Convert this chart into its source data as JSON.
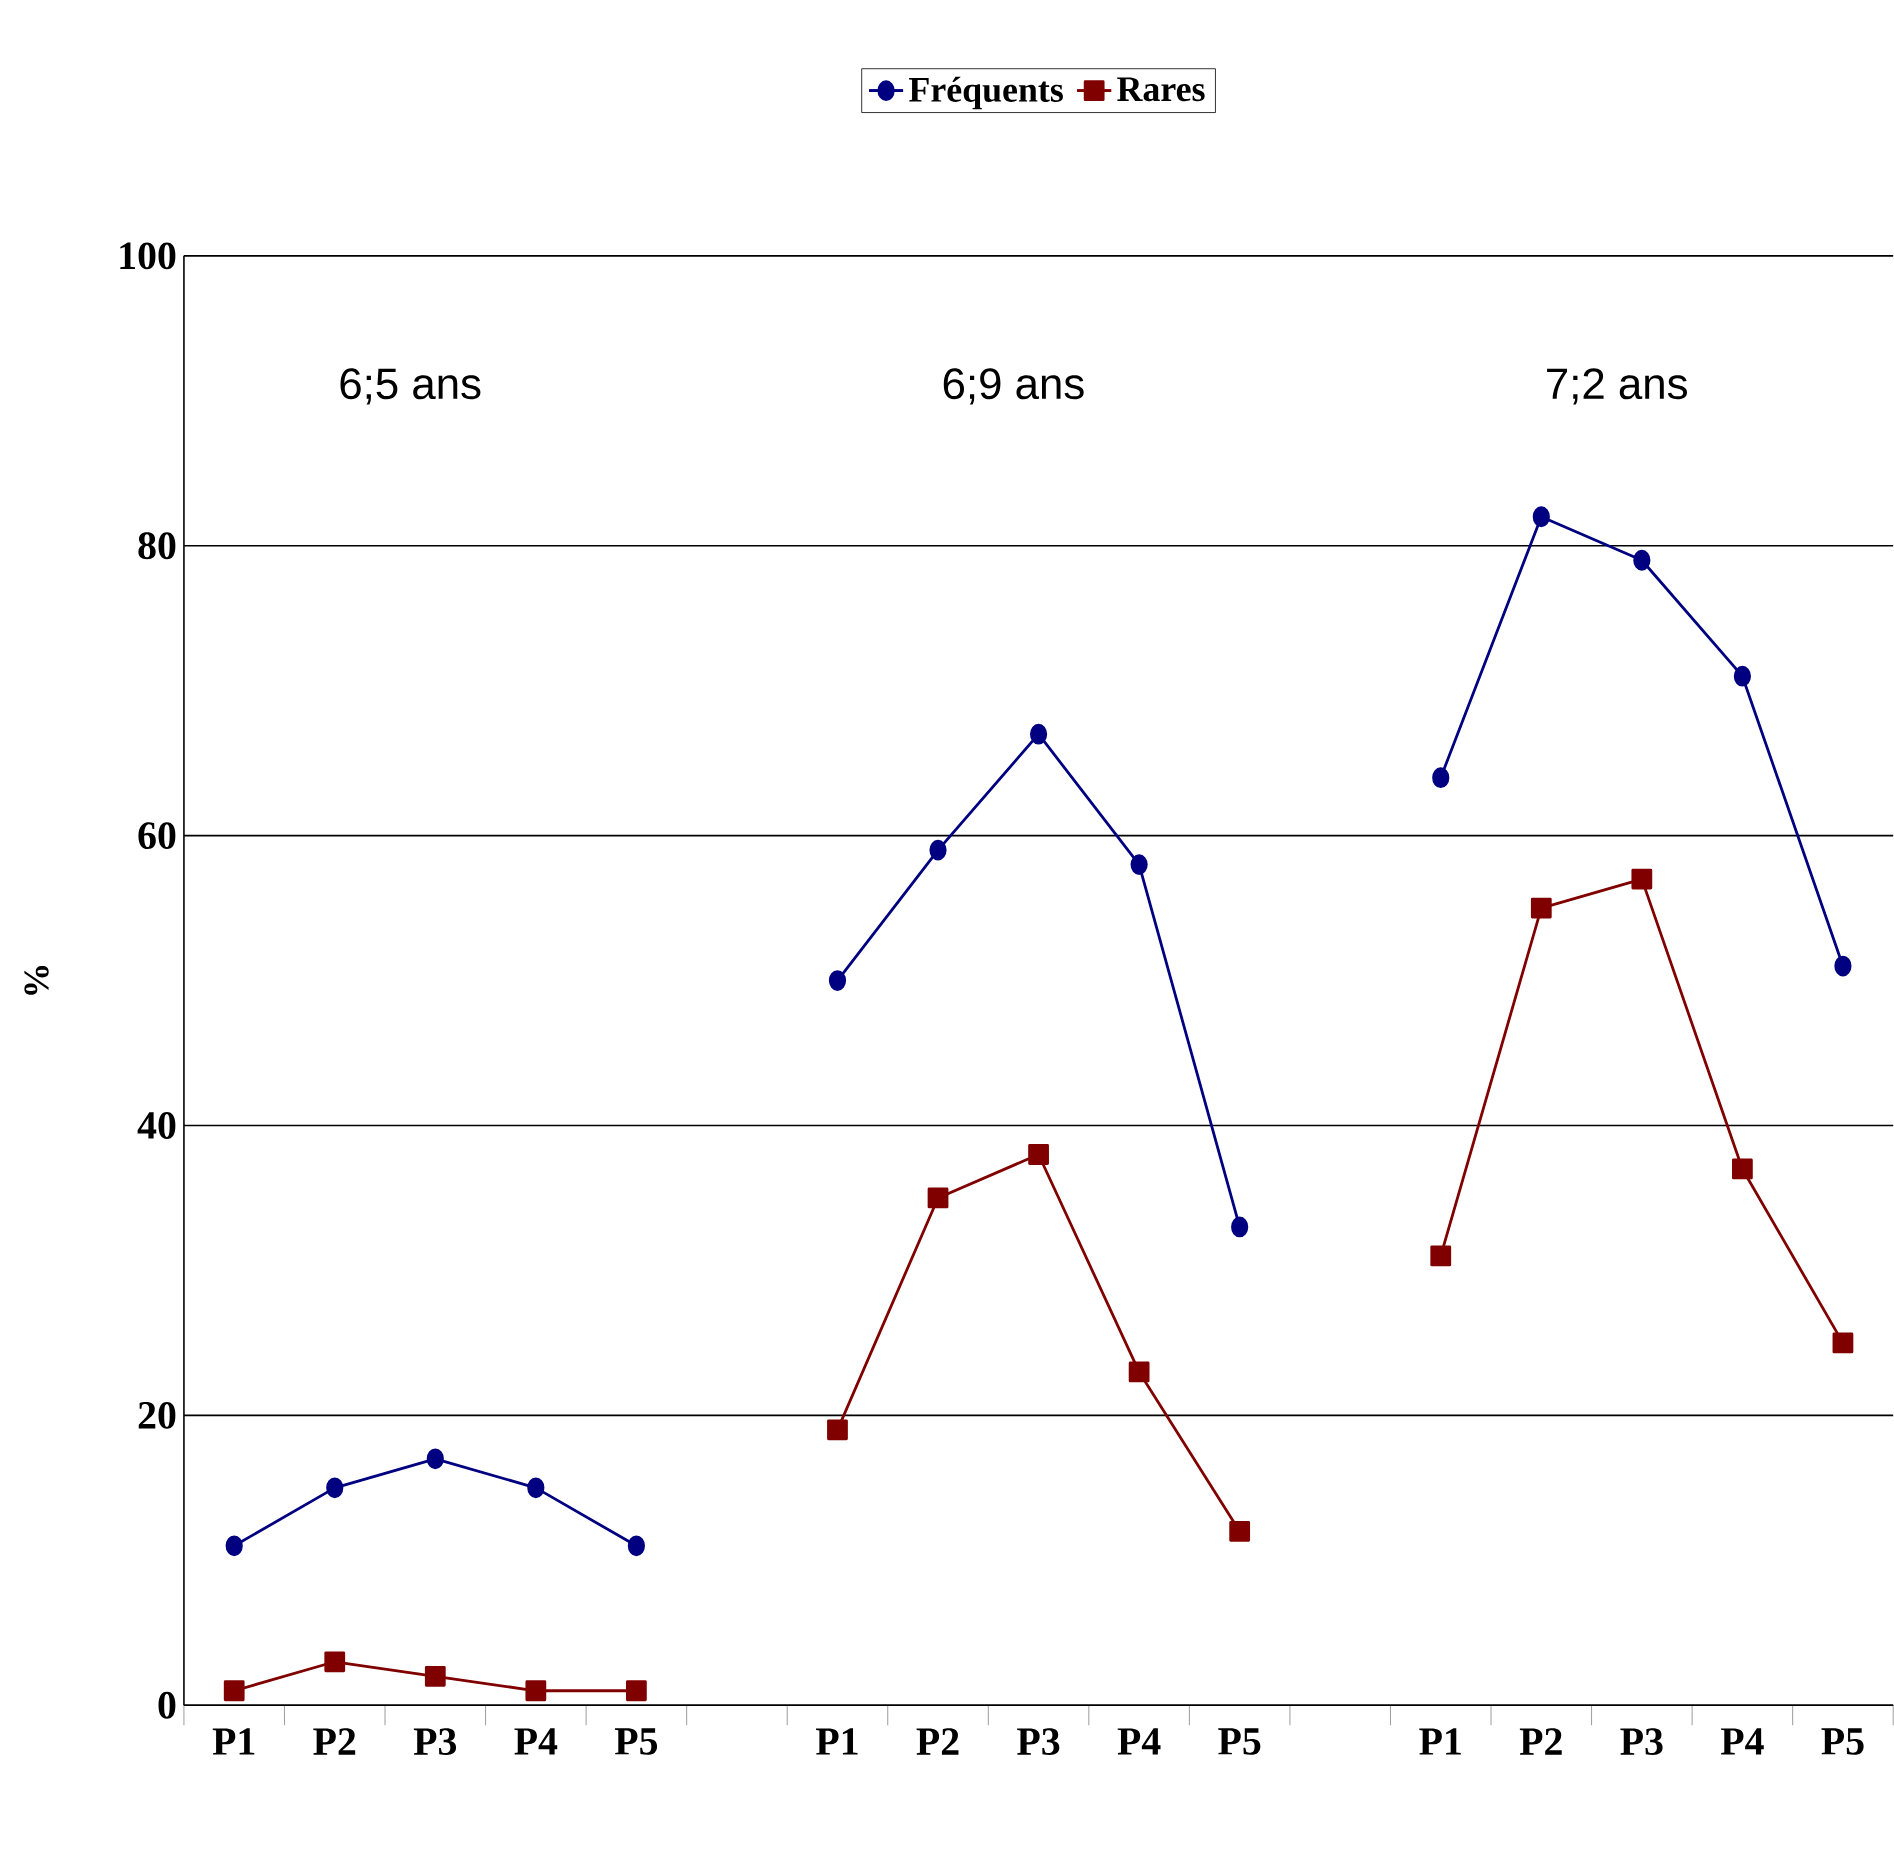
{
  "chart_data": {
    "type": "line",
    "ylabel": "%",
    "categories": [
      "P1",
      "P2",
      "P3",
      "P4",
      "P5",
      null,
      "P1",
      "P2",
      "P3",
      "P4",
      "P5",
      null,
      "P1",
      "P2",
      "P3",
      "P4",
      "P5"
    ],
    "series": [
      {
        "name": "Fréquents",
        "color": "#000080",
        "marker": "circle",
        "values": [
          11,
          15,
          17,
          15,
          11,
          null,
          50,
          59,
          67,
          58,
          33,
          null,
          64,
          82,
          79,
          71,
          51
        ]
      },
      {
        "name": "Rares",
        "color": "#800000",
        "marker": "square",
        "values": [
          1,
          3,
          2,
          1,
          1,
          null,
          19,
          35,
          38,
          23,
          12,
          null,
          31,
          55,
          57,
          37,
          25
        ]
      }
    ],
    "annotations": [
      "6;5 ans",
      "6;9 ans",
      "7;2 ans"
    ],
    "ylim": [
      0,
      100
    ],
    "yticks": [
      0,
      20,
      40,
      60,
      80,
      100
    ],
    "grid": "y",
    "legend": "top"
  }
}
